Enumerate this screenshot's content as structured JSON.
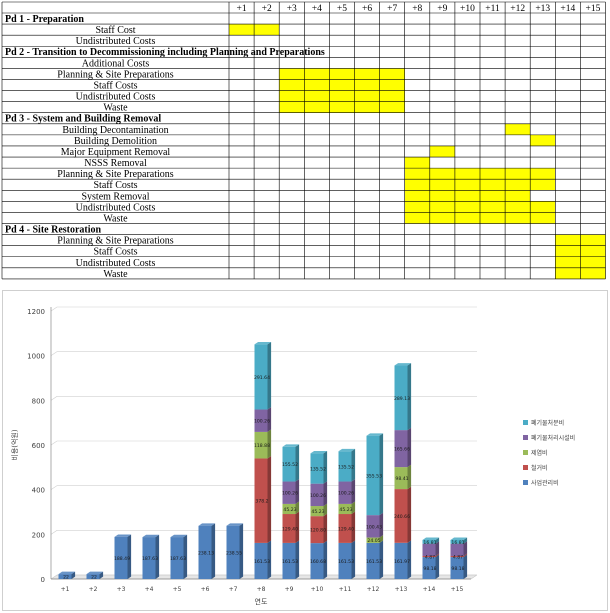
{
  "schedule": {
    "years": [
      "+1",
      "+2",
      "+3",
      "+4",
      "+5",
      "+6",
      "+7",
      "+8",
      "+9",
      "+10",
      "+11",
      "+12",
      "+13",
      "+14",
      "+15"
    ],
    "highlight_color": "#ffff00",
    "rows": [
      {
        "label": "Pd 1  -  Preparation",
        "header": true,
        "cells": []
      },
      {
        "label": "Staff Cost",
        "cells": [
          1,
          2
        ]
      },
      {
        "label": "Undistributed Costs",
        "cells": []
      },
      {
        "label": "Pd 2  -  Transition to Decommissioning    including Planning and Preparations",
        "header": true,
        "cells": []
      },
      {
        "label": "Additional Costs",
        "cells": []
      },
      {
        "label": "Planning  &  Site Preparations",
        "cells": [
          3,
          4,
          5,
          6,
          7
        ]
      },
      {
        "label": "Staff Costs",
        "cells": [
          3,
          4,
          5,
          6,
          7
        ]
      },
      {
        "label": "Undistributed Costs",
        "cells": [
          3,
          4,
          5,
          6,
          7
        ]
      },
      {
        "label": "Waste",
        "cells": [
          3,
          4,
          5,
          6,
          7
        ]
      },
      {
        "label": "Pd 3  -  System and Building Removal",
        "header": true,
        "cells": []
      },
      {
        "label": "Building Decontamination",
        "cells": [
          12
        ]
      },
      {
        "label": "Building Demolition",
        "cells": [
          13
        ]
      },
      {
        "label": "Major Equipment Removal",
        "cells": [
          9
        ]
      },
      {
        "label": "NSSS Removal",
        "cells": [
          8
        ]
      },
      {
        "label": "Planning  &  Site Preparations",
        "cells": [
          8,
          9,
          10,
          11,
          12,
          13
        ]
      },
      {
        "label": "Staff Costs",
        "cells": [
          8,
          9,
          10,
          11,
          12,
          13
        ]
      },
      {
        "label": "System Removal",
        "cells": [
          8,
          9,
          10,
          11,
          12
        ]
      },
      {
        "label": "Undistributed Costs",
        "cells": [
          8,
          9,
          10,
          11,
          12,
          13
        ]
      },
      {
        "label": "Waste",
        "cells": [
          8,
          9,
          10,
          11,
          12,
          13
        ]
      },
      {
        "label": "Pd 4  -  Site Restoration",
        "header": true,
        "cells": []
      },
      {
        "label": "Planning  &  Site Preparations",
        "cells": [
          14,
          15
        ]
      },
      {
        "label": "Staff Costs",
        "cells": [
          14,
          15
        ]
      },
      {
        "label": "Undistributed Costs",
        "cells": [
          14,
          15
        ]
      },
      {
        "label": "Waste",
        "cells": [
          14,
          15
        ]
      }
    ]
  },
  "chart_data": {
    "type": "bar",
    "stacked": true,
    "title": "",
    "xlabel": "연도",
    "ylabel": "비용(억원)",
    "ylim": [
      0,
      1200
    ],
    "yticks": [
      0,
      200,
      400,
      600,
      800,
      1000,
      1200
    ],
    "grid": true,
    "legend_position": "right",
    "categories": [
      "+1",
      "+2",
      "+3",
      "+4",
      "+5",
      "+6",
      "+7",
      "+8",
      "+9",
      "+10",
      "+11",
      "+12",
      "+13",
      "+14",
      "+15"
    ],
    "series": [
      {
        "name": "사업관리비",
        "color": "#4f81bd",
        "values": [
          22,
          22,
          188.49,
          187.63,
          187.63,
          238.13,
          238.55,
          161.53,
          161.53,
          160.68,
          161.53,
          161.53,
          161.97,
          98.18,
          98.18
        ],
        "labels": [
          "22",
          "22",
          "188.49",
          "187.63",
          "187.63",
          "238.13",
          "238.55",
          "161.53",
          "161.53",
          "160.68",
          "161.53",
          "161.53",
          "161.97",
          "98.18",
          "98.18"
        ]
      },
      {
        "name": "철거비",
        "color": "#c0504d",
        "values": [
          0,
          0,
          0,
          0,
          0,
          0,
          0,
          378.2,
          129.4,
          120.8,
          129.4,
          0,
          240.66,
          4.87,
          4.87
        ],
        "labels": [
          "",
          "",
          "",
          "",
          "",
          "",
          "",
          "378.2",
          "129.40",
          "120.80",
          "129.40",
          "",
          "240.66",
          "4.87",
          "4.87"
        ]
      },
      {
        "name": "제염비",
        "color": "#9bbb59",
        "values": [
          0,
          0,
          0,
          0,
          0,
          0,
          0,
          118.88,
          45.23,
          45.23,
          45.23,
          24.05,
          98.41,
          0,
          0
        ],
        "labels": [
          "",
          "",
          "",
          "",
          "",
          "",
          "",
          "118.88",
          "45.23",
          "45.23",
          "45.23",
          "24.05",
          "98.41",
          "",
          ""
        ]
      },
      {
        "name": "폐기물처리시설비",
        "color": "#8064a2",
        "values": [
          0,
          0,
          0,
          0,
          0,
          0,
          0,
          100.26,
          100.26,
          100.26,
          100.26,
          100.43,
          165.66,
          55,
          55
        ],
        "labels": [
          "",
          "",
          "",
          "",
          "",
          "",
          "",
          "100.26",
          "100.26",
          "100.26",
          "100.26",
          "100.43",
          "165.66",
          "",
          ""
        ]
      },
      {
        "name": "폐기물처분비",
        "color": "#4bacc6",
        "values": [
          0,
          0,
          0,
          0,
          0,
          0,
          0,
          291.64,
          155.52,
          135.52,
          135.52,
          355.53,
          289.13,
          16.81,
          16.81
        ],
        "labels": [
          "",
          "",
          "",
          "",
          "",
          "",
          "",
          "291.64",
          "155.52",
          "135.52",
          "135.52",
          "355.53",
          "289.13",
          "16.81",
          "16.81"
        ]
      }
    ]
  }
}
